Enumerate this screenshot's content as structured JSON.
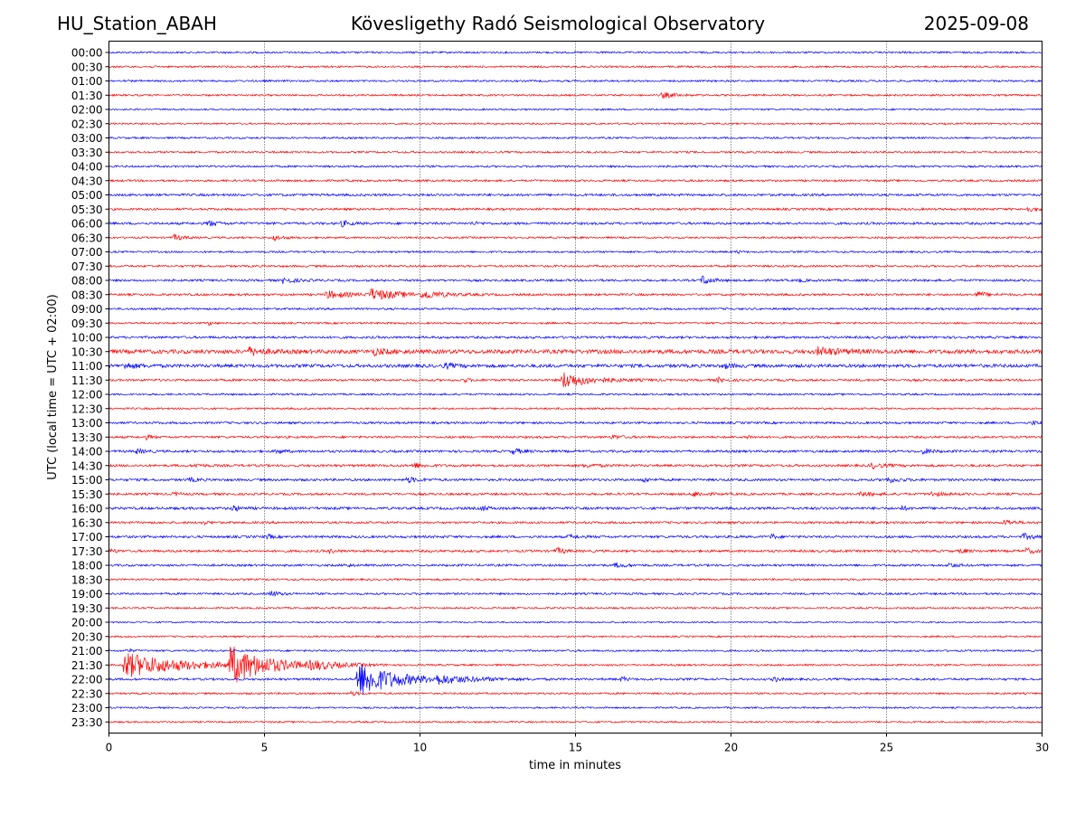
{
  "header": {
    "station": "HU_Station_ABAH",
    "observatory": "Kövesligethy Radó Seismological Observatory",
    "date": "2025-09-08"
  },
  "chart_data": {
    "type": "line",
    "title": "Kövesligethy Radó Seismological Observatory",
    "xlabel": "time in minutes",
    "ylabel": "UTC (local time = UTC + 02:00)",
    "xlim": [
      0,
      30
    ],
    "x_ticks": [
      "0",
      "5",
      "10",
      "15",
      "20",
      "25",
      "30"
    ],
    "x_gridlines": [
      5,
      10,
      15,
      20,
      25
    ],
    "grid": "vertical dotted",
    "row_labels": [
      "00:00",
      "00:30",
      "01:00",
      "01:30",
      "02:00",
      "02:30",
      "03:00",
      "03:30",
      "04:00",
      "04:30",
      "05:00",
      "05:30",
      "06:00",
      "06:30",
      "07:00",
      "07:30",
      "08:00",
      "08:30",
      "09:00",
      "09:30",
      "10:00",
      "10:30",
      "11:00",
      "11:30",
      "12:00",
      "12:30",
      "13:00",
      "13:30",
      "14:00",
      "14:30",
      "15:00",
      "15:30",
      "16:00",
      "16:30",
      "17:00",
      "17:30",
      "18:00",
      "18:30",
      "19:00",
      "19:30",
      "20:00",
      "20:30",
      "21:00",
      "21:30",
      "22:00",
      "22:30",
      "23:00",
      "23:30"
    ],
    "colors": [
      "#0000ff",
      "#ff0000"
    ],
    "rows": [
      {
        "noise": 1.0,
        "events": []
      },
      {
        "noise": 1.0,
        "events": []
      },
      {
        "noise": 1.0,
        "events": []
      },
      {
        "noise": 1.0,
        "events": [
          {
            "t": 17.8,
            "amp": 3,
            "dur": 0.8
          }
        ]
      },
      {
        "noise": 0.9,
        "events": []
      },
      {
        "noise": 0.9,
        "events": []
      },
      {
        "noise": 1.0,
        "events": []
      },
      {
        "noise": 1.0,
        "events": []
      },
      {
        "noise": 1.1,
        "events": []
      },
      {
        "noise": 1.1,
        "events": []
      },
      {
        "noise": 1.3,
        "events": []
      },
      {
        "noise": 1.2,
        "events": [
          {
            "t": 29.5,
            "amp": 2.5,
            "dur": 0.6
          }
        ]
      },
      {
        "noise": 1.3,
        "events": [
          {
            "t": 3.2,
            "amp": 3,
            "dur": 0.6
          },
          {
            "t": 7.5,
            "amp": 3,
            "dur": 0.5
          },
          {
            "t": 11.7,
            "amp": 1.5,
            "dur": 0.4
          }
        ]
      },
      {
        "noise": 1.0,
        "events": [
          {
            "t": 2.1,
            "amp": 3,
            "dur": 0.6
          },
          {
            "t": 5.3,
            "amp": 2.5,
            "dur": 0.7
          }
        ]
      },
      {
        "noise": 1.0,
        "events": [
          {
            "t": 20.2,
            "amp": 1.5,
            "dur": 0.3
          }
        ]
      },
      {
        "noise": 1.1,
        "events": []
      },
      {
        "noise": 1.2,
        "events": [
          {
            "t": 5.6,
            "amp": 3,
            "dur": 0.8
          },
          {
            "t": 19.1,
            "amp": 6,
            "dur": 0.5
          },
          {
            "t": 22.2,
            "amp": 1.5,
            "dur": 0.4
          }
        ]
      },
      {
        "noise": 1.2,
        "events": [
          {
            "t": 7.0,
            "amp": 4,
            "dur": 1.5
          },
          {
            "t": 8.4,
            "amp": 6,
            "dur": 2.0
          },
          {
            "t": 10.1,
            "amp": 4,
            "dur": 1.2
          },
          {
            "t": 27.9,
            "amp": 3,
            "dur": 0.8
          }
        ]
      },
      {
        "noise": 1.1,
        "events": []
      },
      {
        "noise": 1.0,
        "events": [
          {
            "t": 3.2,
            "amp": 2,
            "dur": 0.3
          }
        ]
      },
      {
        "noise": 1.3,
        "events": []
      },
      {
        "noise": 2.2,
        "events": [
          {
            "t": 4.5,
            "amp": 4,
            "dur": 1.0
          },
          {
            "t": 8.5,
            "amp": 3,
            "dur": 1.0
          },
          {
            "t": 22.8,
            "amp": 4,
            "dur": 1.5
          }
        ]
      },
      {
        "noise": 1.8,
        "events": [
          {
            "t": 0.5,
            "amp": 3,
            "dur": 0.8
          },
          {
            "t": 10.8,
            "amp": 2.5,
            "dur": 0.6
          },
          {
            "t": 19.8,
            "amp": 2.5,
            "dur": 0.5
          }
        ]
      },
      {
        "noise": 1.2,
        "events": [
          {
            "t": 14.6,
            "amp": 9,
            "dur": 1.8
          },
          {
            "t": 11.4,
            "amp": 2,
            "dur": 0.4
          },
          {
            "t": 19.6,
            "amp": 2.5,
            "dur": 0.4
          }
        ]
      },
      {
        "noise": 1.0,
        "events": []
      },
      {
        "noise": 1.0,
        "events": []
      },
      {
        "noise": 1.2,
        "events": [
          {
            "t": 29.7,
            "amp": 2,
            "dur": 0.4
          }
        ]
      },
      {
        "noise": 1.2,
        "events": [
          {
            "t": 1.2,
            "amp": 2,
            "dur": 0.4
          },
          {
            "t": 16.2,
            "amp": 2,
            "dur": 0.6
          },
          {
            "t": 20.5,
            "amp": 2,
            "dur": 0.4
          }
        ]
      },
      {
        "noise": 1.3,
        "events": [
          {
            "t": 0.9,
            "amp": 2.5,
            "dur": 0.5
          },
          {
            "t": 5.4,
            "amp": 3,
            "dur": 0.4
          },
          {
            "t": 13.0,
            "amp": 3,
            "dur": 0.6
          },
          {
            "t": 26.2,
            "amp": 3,
            "dur": 0.5
          }
        ]
      },
      {
        "noise": 1.3,
        "events": [
          {
            "t": 2.8,
            "amp": 2,
            "dur": 0.5
          },
          {
            "t": 9.8,
            "amp": 3,
            "dur": 0.6
          },
          {
            "t": 15.3,
            "amp": 2,
            "dur": 0.8
          },
          {
            "t": 24.5,
            "amp": 3,
            "dur": 0.8
          }
        ]
      },
      {
        "noise": 1.3,
        "events": [
          {
            "t": 2.6,
            "amp": 2,
            "dur": 0.5
          },
          {
            "t": 9.6,
            "amp": 3,
            "dur": 0.7
          },
          {
            "t": 17.2,
            "amp": 3,
            "dur": 0.3
          },
          {
            "t": 25.0,
            "amp": 3,
            "dur": 0.8
          }
        ]
      },
      {
        "noise": 1.2,
        "events": [
          {
            "t": 2.1,
            "amp": 2,
            "dur": 0.4
          },
          {
            "t": 18.8,
            "amp": 3,
            "dur": 0.7
          },
          {
            "t": 24.2,
            "amp": 2.5,
            "dur": 0.8
          },
          {
            "t": 26.4,
            "amp": 2.5,
            "dur": 0.8
          }
        ]
      },
      {
        "noise": 1.4,
        "events": [
          {
            "t": 4.0,
            "amp": 3.5,
            "dur": 0.4
          },
          {
            "t": 12.0,
            "amp": 2.5,
            "dur": 0.4
          },
          {
            "t": 25.5,
            "amp": 2,
            "dur": 0.4
          }
        ]
      },
      {
        "noise": 1.2,
        "events": [
          {
            "t": 3.0,
            "amp": 2,
            "dur": 0.4
          },
          {
            "t": 28.8,
            "amp": 3,
            "dur": 0.6
          }
        ]
      },
      {
        "noise": 1.3,
        "events": [
          {
            "t": 5.1,
            "amp": 2.5,
            "dur": 0.3
          },
          {
            "t": 14.8,
            "amp": 2,
            "dur": 0.6
          },
          {
            "t": 21.3,
            "amp": 3,
            "dur": 0.3
          },
          {
            "t": 29.4,
            "amp": 3,
            "dur": 0.7
          }
        ]
      },
      {
        "noise": 1.3,
        "events": [
          {
            "t": 0.1,
            "amp": 2,
            "dur": 0.3
          },
          {
            "t": 7.1,
            "amp": 2,
            "dur": 0.4
          },
          {
            "t": 14.4,
            "amp": 3.5,
            "dur": 0.5
          },
          {
            "t": 27.4,
            "amp": 2.5,
            "dur": 0.4
          },
          {
            "t": 29.5,
            "amp": 3,
            "dur": 0.5
          }
        ]
      },
      {
        "noise": 1.2,
        "events": [
          {
            "t": 7.6,
            "amp": 2,
            "dur": 0.3
          },
          {
            "t": 16.3,
            "amp": 2.5,
            "dur": 0.7
          },
          {
            "t": 27.0,
            "amp": 2.5,
            "dur": 0.6
          }
        ]
      },
      {
        "noise": 1.0,
        "events": []
      },
      {
        "noise": 1.1,
        "events": [
          {
            "t": 5.2,
            "amp": 3,
            "dur": 0.6
          }
        ]
      },
      {
        "noise": 0.9,
        "events": []
      },
      {
        "noise": 0.8,
        "events": []
      },
      {
        "noise": 0.9,
        "events": []
      },
      {
        "noise": 1.0,
        "events": [
          {
            "t": 0.6,
            "amp": 2,
            "dur": 0.3
          }
        ]
      },
      {
        "noise": 1.0,
        "events": [
          {
            "t": 0.5,
            "amp": 14,
            "dur": 3.8
          },
          {
            "t": 3.9,
            "amp": 20,
            "dur": 2.5
          },
          {
            "t": 6.5,
            "amp": 4,
            "dur": 1.5
          }
        ]
      },
      {
        "noise": 1.2,
        "events": [
          {
            "t": 8.0,
            "amp": 20,
            "dur": 2.5
          },
          {
            "t": 10.5,
            "amp": 3.5,
            "dur": 2.5
          },
          {
            "t": 16.5,
            "amp": 3,
            "dur": 0.3
          },
          {
            "t": 21.4,
            "amp": 3,
            "dur": 0.3
          }
        ]
      },
      {
        "noise": 1.0,
        "events": [
          {
            "t": 7.8,
            "amp": 2,
            "dur": 0.5
          }
        ]
      },
      {
        "noise": 0.9,
        "events": []
      },
      {
        "noise": 0.9,
        "events": []
      }
    ]
  }
}
